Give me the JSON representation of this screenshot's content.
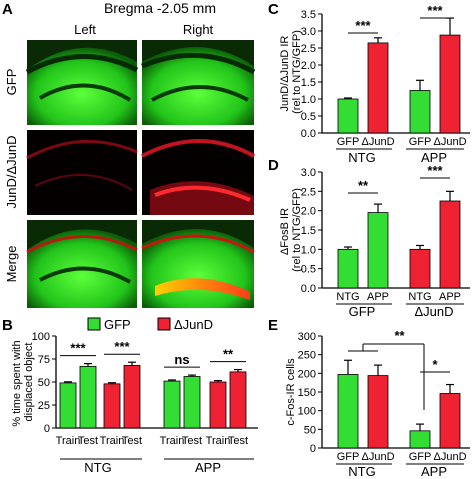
{
  "figure": {
    "panel_letters": [
      "A",
      "B",
      "C",
      "D",
      "E"
    ],
    "micrograph": {
      "title": "Bregma -2.05 mm",
      "columns": [
        "Left",
        "Right"
      ],
      "rows": [
        "GFP",
        "JunD/ΔJunD",
        "Merge"
      ]
    },
    "legend": [
      {
        "label": "GFP",
        "color": "#33dd33"
      },
      {
        "label": "ΔJunD",
        "color": "#ee2233"
      }
    ]
  },
  "chart_data": [
    {
      "panel": "B",
      "type": "bar",
      "ylabel": "% time spent with displaced object",
      "ylim": [
        0,
        100
      ],
      "yticks": [
        0,
        25,
        50,
        75,
        100
      ],
      "groups": [
        {
          "label": "NTG",
          "series": "GFP",
          "color": "#33dd33"
        },
        {
          "label": "NTG",
          "series": "ΔJunD",
          "color": "#ee2233"
        },
        {
          "label": "APP",
          "series": "GFP",
          "color": "#33dd33"
        },
        {
          "label": "APP",
          "series": "ΔJunD",
          "color": "#ee2233"
        }
      ],
      "categories": [
        "Train",
        "Test"
      ],
      "values": [
        [
          49,
          67
        ],
        [
          48,
          68
        ],
        [
          51,
          56
        ],
        [
          50,
          61
        ]
      ],
      "errors": [
        [
          1.2,
          3
        ],
        [
          1.2,
          3.5
        ],
        [
          1.2,
          1.5
        ],
        [
          1.5,
          2.5
        ]
      ],
      "significance": [
        "***",
        "***",
        "ns",
        "**"
      ],
      "group_labels": [
        "NTG",
        "APP"
      ]
    },
    {
      "panel": "C",
      "type": "bar",
      "ylabel": "JunD/ΔJunD IR (rel to NTG/GFP)",
      "ylim": [
        0,
        3.5
      ],
      "yticks": [
        "0.0",
        "0.5",
        "1.0",
        "1.5",
        "2.0",
        "2.5",
        "3.0",
        "3.5"
      ],
      "categories": [
        "GFP",
        "ΔJunD",
        "GFP",
        "ΔJunD"
      ],
      "values": [
        1.0,
        2.65,
        1.25,
        2.88
      ],
      "errors": [
        0.03,
        0.15,
        0.3,
        0.5
      ],
      "colors": [
        "#33dd33",
        "#ee2233",
        "#33dd33",
        "#ee2233"
      ],
      "group_labels": [
        "NTG",
        "APP"
      ],
      "significance": [
        "***",
        "***"
      ]
    },
    {
      "panel": "D",
      "type": "bar",
      "ylabel": "ΔFosB IR (rel to NTG/GFP)",
      "ylim": [
        0,
        3.0
      ],
      "yticks": [
        "0.0",
        "0.5",
        "1.0",
        "1.5",
        "2.0",
        "2.5",
        "3.0"
      ],
      "categories": [
        "NTG",
        "APP",
        "NTG",
        "APP"
      ],
      "values": [
        1.0,
        1.95,
        1.0,
        2.25
      ],
      "errors": [
        0.06,
        0.22,
        0.1,
        0.25
      ],
      "colors": [
        "#33dd33",
        "#33dd33",
        "#ee2233",
        "#ee2233"
      ],
      "group_labels": [
        "GFP",
        "ΔJunD"
      ],
      "significance": [
        "**",
        "***"
      ]
    },
    {
      "panel": "E",
      "type": "bar",
      "ylabel": "c-Fos-IR cells",
      "ylim": [
        0,
        300
      ],
      "yticks": [
        "0",
        "50",
        "100",
        "150",
        "200",
        "250",
        "300"
      ],
      "categories": [
        "GFP",
        "ΔJunD",
        "GFP",
        "ΔJunD"
      ],
      "values": [
        197,
        194,
        46,
        146
      ],
      "errors": [
        38,
        28,
        18,
        24
      ],
      "colors": [
        "#33dd33",
        "#ee2233",
        "#33dd33",
        "#ee2233"
      ],
      "group_labels": [
        "NTG",
        "APP"
      ],
      "significance": [
        "**",
        "*"
      ]
    }
  ]
}
